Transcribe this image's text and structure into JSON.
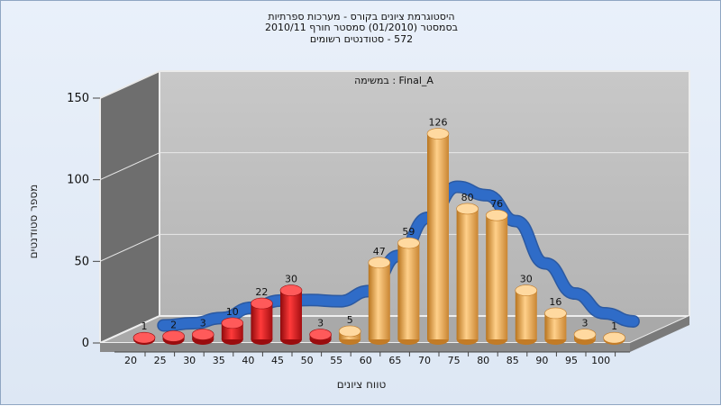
{
  "chart_data": {
    "type": "bar",
    "title": [
      "היסטוגרמת ציונים בקורס - מערכות ספרתיות",
      "בסמסטר  (01/2010)  סמסטר חורף  2010/11",
      "572 - סטודנטים רשומים"
    ],
    "annotation": "במשימה : Final_A",
    "xlabel": "טווח ציונים",
    "ylabel": "מספר סטודנטים",
    "categories": [
      "20",
      "25",
      "30",
      "35",
      "40",
      "45",
      "50",
      "55",
      "60",
      "65",
      "70",
      "75",
      "80",
      "85",
      "90",
      "95",
      "100"
    ],
    "y_ticks": [
      "0",
      "50",
      "100",
      "150"
    ],
    "ylim": [
      0,
      150
    ],
    "values": [
      1,
      2,
      3,
      10,
      22,
      30,
      3,
      5,
      47,
      59,
      126,
      80,
      76,
      30,
      16,
      3,
      1
    ],
    "bar_colors": [
      "red",
      "red",
      "red",
      "red",
      "red",
      "red",
      "red",
      "orange",
      "orange",
      "orange",
      "orange",
      "orange",
      "orange",
      "orange",
      "orange",
      "orange",
      "orange"
    ],
    "colors": {
      "red": "#d41418",
      "orange": "#e8a040",
      "curve": "#2f6cc8",
      "plot_back": "#bcbcbc",
      "plot_side": "#6e6e6e"
    },
    "curve": true,
    "grid": true
  }
}
